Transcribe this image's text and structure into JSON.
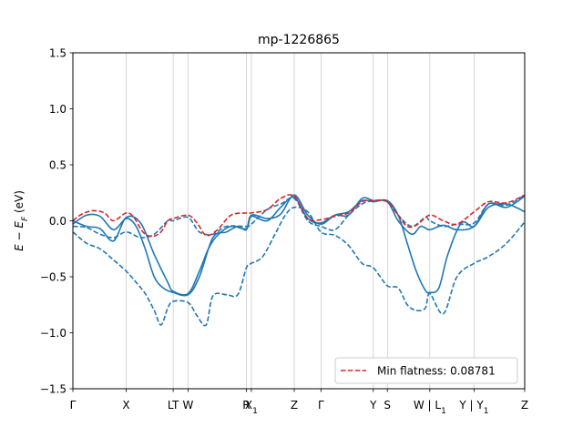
{
  "chart_data": {
    "type": "line",
    "title": "mp-1226865",
    "xlabel": "",
    "ylabel_parts": {
      "main": "E − E",
      "sub": "F",
      "unit": " (eV)"
    },
    "ylim": [
      -1.5,
      1.5
    ],
    "yticks": [
      1.5,
      1.0,
      0.5,
      0.0,
      -0.5,
      -1.0,
      -1.5
    ],
    "ytick_labels": [
      "1.5",
      "1.0",
      "0.5",
      "0.0",
      "−0.5",
      "−1.0",
      "−1.5"
    ],
    "xlim": [
      0,
      10
    ],
    "kpoints": [
      {
        "x": 0.0,
        "label": "Γ"
      },
      {
        "x": 1.18,
        "label": "X"
      },
      {
        "x": 2.22,
        "label": "LT"
      },
      {
        "x": 2.55,
        "label": "W"
      },
      {
        "x": 3.84,
        "label": "R"
      },
      {
        "x": 3.95,
        "label": "X",
        "sub": "1"
      },
      {
        "x": 4.9,
        "label": "Z"
      },
      {
        "x": 5.49,
        "label": "Γ"
      },
      {
        "x": 6.65,
        "label": "Y"
      },
      {
        "x": 6.96,
        "label": "S"
      },
      {
        "x": 7.9,
        "label": "W | L",
        "sub": "1"
      },
      {
        "x": 8.88,
        "label": "Y | Y",
        "sub": "1"
      },
      {
        "x": 10.0,
        "label": "Z"
      }
    ],
    "grid": false,
    "legend": {
      "placement": "lower-right",
      "entry": "Min flatness: 0.08781"
    },
    "series": [
      {
        "style": "solid",
        "color": "#1f77b4",
        "x": [
          0,
          0.3,
          0.6,
          0.9,
          1.18,
          1.4,
          1.6,
          1.8,
          2.0,
          2.22,
          2.55,
          2.8,
          3.1,
          3.4,
          3.65,
          3.84,
          3.95,
          4.3,
          4.6,
          4.9,
          5.2,
          5.49,
          5.8,
          6.1,
          6.4,
          6.65,
          6.96,
          7.2,
          7.4,
          7.6,
          7.8,
          7.9,
          8.1,
          8.3,
          8.6,
          8.88,
          9.2,
          9.6,
          10.0
        ],
        "y": [
          -0.03,
          0.05,
          0.04,
          -0.08,
          0.02,
          -0.05,
          -0.25,
          -0.5,
          -0.6,
          -0.64,
          -0.66,
          -0.5,
          -0.15,
          -0.1,
          -0.05,
          -0.08,
          0.05,
          0.02,
          0.06,
          0.23,
          0.05,
          -0.03,
          0.05,
          0.08,
          0.18,
          0.17,
          0.18,
          0.05,
          -0.2,
          -0.45,
          -0.62,
          -0.64,
          -0.6,
          -0.3,
          -0.02,
          -0.05,
          0.12,
          0.15,
          0.08
        ]
      },
      {
        "style": "solid",
        "color": "#1f77b4",
        "x": [
          0,
          0.3,
          0.6,
          0.9,
          1.18,
          1.5,
          1.8,
          2.1,
          2.22,
          2.55,
          2.8,
          3.0,
          3.2,
          3.5,
          3.84,
          3.95,
          4.3,
          4.6,
          4.9,
          5.2,
          5.49,
          5.8,
          6.1,
          6.4,
          6.65,
          6.96,
          7.2,
          7.5,
          7.7,
          7.9,
          8.2,
          8.5,
          8.88,
          9.2,
          9.6,
          10.0
        ],
        "y": [
          0.0,
          -0.05,
          -0.07,
          -0.18,
          0.03,
          -0.02,
          -0.3,
          -0.55,
          -0.63,
          -0.65,
          -0.45,
          -0.25,
          -0.13,
          -0.05,
          -0.07,
          0.04,
          0.0,
          0.12,
          0.21,
          0.02,
          -0.02,
          0.05,
          0.05,
          0.2,
          0.18,
          0.17,
          0.0,
          -0.12,
          -0.05,
          -0.08,
          -0.04,
          -0.08,
          -0.05,
          0.15,
          0.12,
          0.22
        ]
      },
      {
        "style": "dashed",
        "color": "#1f77b4",
        "x": [
          0,
          0.3,
          0.6,
          0.9,
          1.18,
          1.4,
          1.6,
          1.8,
          1.95,
          2.1,
          2.22,
          2.55,
          2.75,
          2.95,
          3.1,
          3.4,
          3.65,
          3.84,
          3.95,
          4.2,
          4.5,
          4.7,
          4.9,
          5.2,
          5.49,
          5.8,
          6.1,
          6.4,
          6.65,
          6.96,
          7.2,
          7.4,
          7.6,
          7.8,
          7.9,
          8.2,
          8.5,
          8.88,
          9.2,
          9.6,
          10.0
        ],
        "y": [
          -0.1,
          -0.2,
          -0.25,
          -0.35,
          -0.45,
          -0.55,
          -0.65,
          -0.8,
          -0.93,
          -0.78,
          -0.72,
          -0.73,
          -0.85,
          -0.93,
          -0.67,
          -0.66,
          -0.66,
          -0.42,
          -0.38,
          -0.32,
          -0.1,
          0.05,
          0.12,
          0.08,
          -0.1,
          -0.13,
          -0.22,
          -0.38,
          -0.42,
          -0.58,
          -0.6,
          -0.75,
          -0.8,
          -0.78,
          -0.65,
          -0.83,
          -0.5,
          -0.38,
          -0.32,
          -0.2,
          -0.01
        ]
      },
      {
        "style": "dashed",
        "color": "#1f77b4",
        "x": [
          0,
          0.3,
          0.6,
          0.9,
          1.18,
          1.5,
          1.8,
          2.1,
          2.22,
          2.55,
          2.8,
          3.1,
          3.4,
          3.84,
          3.95,
          4.3,
          4.6,
          4.9,
          5.2,
          5.49,
          5.8,
          6.1,
          6.4,
          6.65,
          6.96,
          7.2,
          7.5,
          7.8,
          7.9,
          8.2,
          8.5,
          8.88,
          9.2,
          9.6,
          10.0
        ],
        "y": [
          -0.05,
          -0.06,
          -0.12,
          -0.15,
          -0.1,
          -0.15,
          -0.12,
          0.0,
          0.0,
          0.03,
          -0.1,
          -0.12,
          -0.05,
          -0.05,
          -0.03,
          0.1,
          0.15,
          0.2,
          0.0,
          -0.05,
          -0.08,
          0.05,
          0.15,
          0.18,
          0.17,
          0.05,
          -0.05,
          0.03,
          0.0,
          -0.05,
          -0.03,
          -0.02,
          0.15,
          0.14,
          0.23
        ]
      },
      {
        "style": "dashed",
        "color": "#d62728",
        "x": [
          0,
          0.2,
          0.45,
          0.7,
          0.9,
          1.18,
          1.35,
          1.55,
          1.75,
          1.95,
          2.1,
          2.22,
          2.55,
          2.75,
          2.95,
          3.2,
          3.5,
          3.84,
          3.95,
          4.3,
          4.6,
          4.9,
          5.2,
          5.49,
          5.8,
          6.1,
          6.4,
          6.65,
          6.96,
          7.2,
          7.4,
          7.6,
          7.9,
          8.2,
          8.5,
          8.88,
          9.2,
          9.6,
          10.0
        ],
        "y": [
          0.0,
          0.06,
          0.09,
          0.07,
          0.0,
          0.07,
          0.03,
          -0.1,
          -0.14,
          -0.1,
          0.0,
          0.02,
          0.05,
          -0.02,
          -0.13,
          -0.08,
          0.05,
          0.07,
          0.07,
          0.1,
          0.2,
          0.22,
          0.02,
          0.01,
          0.04,
          0.07,
          0.17,
          0.18,
          0.17,
          0.05,
          -0.05,
          -0.04,
          0.05,
          0.0,
          -0.03,
          0.08,
          0.17,
          0.16,
          0.23
        ]
      }
    ]
  }
}
